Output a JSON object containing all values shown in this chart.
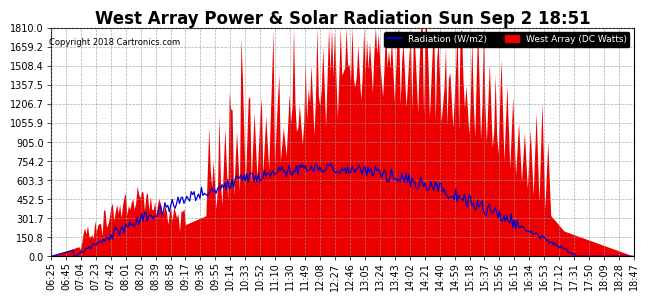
{
  "title": "West Array Power & Solar Radiation Sun Sep 2 18:51",
  "copyright": "Copyright 2018 Cartronics.com",
  "legend_radiation": "Radiation (W/m2)",
  "legend_west_array": "West Array (DC Watts)",
  "yticks": [
    0.0,
    150.8,
    301.7,
    452.5,
    603.3,
    754.2,
    905.0,
    1055.9,
    1206.7,
    1357.5,
    1508.4,
    1659.2,
    1810.0
  ],
  "ymax": 1810.0,
  "ymin": 0.0,
  "background_color": "#ffffff",
  "plot_bg_color": "#ffffff",
  "grid_color": "#999999",
  "red_color": "#ee0000",
  "blue_color": "#0000cc",
  "title_fontsize": 12,
  "tick_fontsize": 7,
  "xtick_labels": [
    "06:25",
    "06:45",
    "07:04",
    "07:23",
    "07:42",
    "08:01",
    "08:20",
    "08:39",
    "08:58",
    "09:17",
    "09:36",
    "09:55",
    "10:14",
    "10:33",
    "10:52",
    "11:10",
    "11:30",
    "11:49",
    "12:08",
    "12:27",
    "12:46",
    "13:05",
    "13:24",
    "13:43",
    "14:02",
    "14:21",
    "14:40",
    "14:59",
    "15:18",
    "15:37",
    "15:56",
    "16:15",
    "16:34",
    "16:53",
    "17:12",
    "17:31",
    "17:50",
    "18:09",
    "18:28",
    "18:47"
  ]
}
